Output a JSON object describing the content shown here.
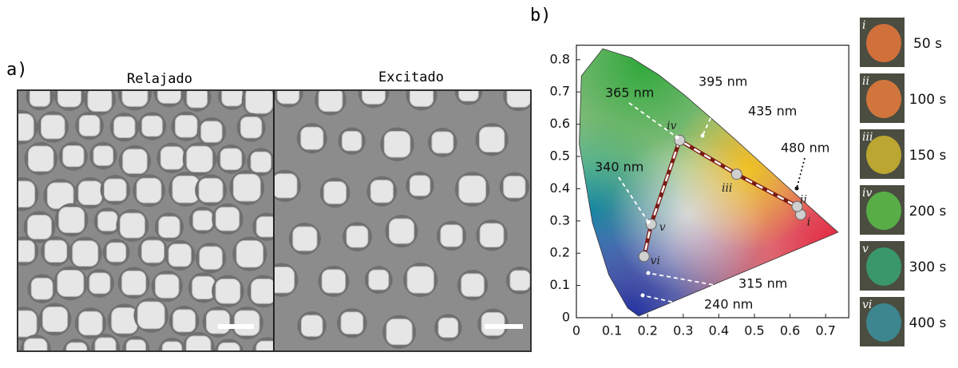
{
  "panel_a": {
    "label": "a)",
    "titles": [
      "Relajado",
      "Excitado"
    ]
  },
  "chart_data": {
    "type": "scatter",
    "label": "b)",
    "xlim": [
      0,
      0.765
    ],
    "ylim": [
      0,
      0.845
    ],
    "xticks": [
      0,
      0.1,
      0.2,
      0.3,
      0.4,
      0.5,
      0.6,
      0.7
    ],
    "yticks": [
      0,
      0.1,
      0.2,
      0.3,
      0.4,
      0.5,
      0.6,
      0.7,
      0.8
    ],
    "series": [
      {
        "color": "#d0d0d0",
        "line_color": "#7a1a14",
        "x": [
          0.63,
          0.62,
          0.45,
          0.29,
          0.21,
          0.19
        ],
        "y": [
          0.32,
          0.345,
          0.445,
          0.55,
          0.29,
          0.19
        ],
        "point_labels": [
          "i",
          "ii",
          "iii",
          "iv",
          "v",
          "vi"
        ]
      }
    ],
    "annotations": [
      "365 nm",
      "395 nm",
      "435 nm",
      "480 nm",
      "340 nm",
      "315 nm",
      "240 nm"
    ]
  },
  "swatches": [
    {
      "label": "i",
      "time": "50 s",
      "color": "#e0743a"
    },
    {
      "label": "ii",
      "time": "100 s",
      "color": "#e07a3c"
    },
    {
      "label": "iii",
      "time": "150 s",
      "color": "#c8b030"
    },
    {
      "label": "iv",
      "time": "200 s",
      "color": "#5ab848"
    },
    {
      "label": "v",
      "time": "300 s",
      "color": "#38a070"
    },
    {
      "label": "vi",
      "time": "400 s",
      "color": "#3c8c98"
    }
  ]
}
